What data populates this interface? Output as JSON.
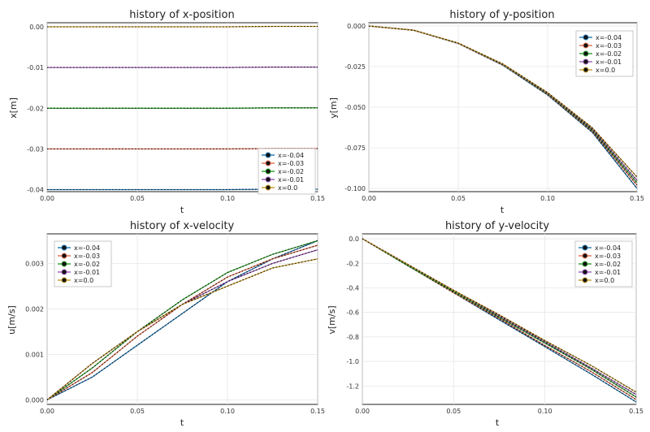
{
  "palette": [
    "#1f77b4",
    "#e06c4f",
    "#2ca02c",
    "#9b59b6",
    "#c79a2a"
  ],
  "chart_data": [
    {
      "type": "line",
      "title": "history of x-position",
      "xlabel": "t",
      "ylabel": "x[m]",
      "xlim": [
        0,
        0.15
      ],
      "ylim": [
        -0.0405,
        0.001
      ],
      "xticks": [
        "0.00",
        "0.05",
        "0.10",
        "0.15"
      ],
      "xtick_values": [
        0,
        0.05,
        0.1,
        0.15
      ],
      "yticks": [
        "-0.04",
        "-0.03",
        "-0.02",
        "-0.01",
        "0.00"
      ],
      "ytick_values": [
        -0.04,
        -0.03,
        -0.02,
        -0.01,
        0
      ],
      "grid": true,
      "legend_position": "bottom-right",
      "x": [
        0,
        0.025,
        0.05,
        0.075,
        0.1,
        0.125,
        0.15
      ],
      "series": [
        {
          "name": "x=-0.04",
          "values": [
            -0.04,
            -0.04,
            -0.04,
            -0.04,
            -0.04,
            -0.0399,
            -0.0399
          ]
        },
        {
          "name": "x=-0.03",
          "values": [
            -0.03,
            -0.03,
            -0.03,
            -0.03,
            -0.03,
            -0.0299,
            -0.0299
          ]
        },
        {
          "name": "x=-0.02",
          "values": [
            -0.02,
            -0.02,
            -0.02,
            -0.02,
            -0.02,
            -0.0199,
            -0.0199
          ]
        },
        {
          "name": "x=-0.01",
          "values": [
            -0.01,
            -0.01,
            -0.01,
            -0.01,
            -0.01,
            -0.0099,
            -0.0099
          ]
        },
        {
          "name": "x=0.0",
          "values": [
            0,
            0,
            0,
            0,
            0,
            0.0001,
            0.0001
          ]
        }
      ]
    },
    {
      "type": "line",
      "title": "history of y-position",
      "xlabel": "t",
      "ylabel": "y[m]",
      "xlim": [
        0,
        0.15
      ],
      "ylim": [
        -0.102,
        0.002
      ],
      "xticks": [
        "0.00",
        "0.05",
        "0.10",
        "0.15"
      ],
      "xtick_values": [
        0,
        0.05,
        0.1,
        0.15
      ],
      "yticks": [
        "-0.100",
        "-0.075",
        "-0.050",
        "-0.025",
        "0.000"
      ],
      "ytick_values": [
        -0.1,
        -0.075,
        -0.05,
        -0.025,
        0
      ],
      "grid": true,
      "legend_position": "top-right",
      "x": [
        0,
        0.025,
        0.05,
        0.075,
        0.1,
        0.125,
        0.15
      ],
      "series": [
        {
          "name": "x=-0.04",
          "values": [
            0,
            -0.0026,
            -0.0108,
            -0.0242,
            -0.0425,
            -0.0655,
            -0.1
          ]
        },
        {
          "name": "x=-0.03",
          "values": [
            0,
            -0.0026,
            -0.0107,
            -0.024,
            -0.0421,
            -0.0648,
            -0.098
          ]
        },
        {
          "name": "x=-0.02",
          "values": [
            0,
            -0.0026,
            -0.0106,
            -0.0238,
            -0.0417,
            -0.0641,
            -0.0965
          ]
        },
        {
          "name": "x=-0.01",
          "values": [
            0,
            -0.0026,
            -0.0106,
            -0.0236,
            -0.0413,
            -0.0634,
            -0.095
          ]
        },
        {
          "name": "x=0.0",
          "values": [
            0,
            -0.0026,
            -0.0105,
            -0.0234,
            -0.041,
            -0.0627,
            -0.093
          ]
        }
      ]
    },
    {
      "type": "line",
      "title": "history of x-velocity",
      "xlabel": "t",
      "ylabel": "u[m/s]",
      "xlim": [
        0,
        0.15
      ],
      "ylim": [
        -0.0001,
        0.00365
      ],
      "xticks": [
        "0.00",
        "0.05",
        "0.10",
        "0.15"
      ],
      "xtick_values": [
        0,
        0.05,
        0.1,
        0.15
      ],
      "yticks": [
        "0.000",
        "0.001",
        "0.002",
        "0.003"
      ],
      "ytick_values": [
        0,
        0.001,
        0.002,
        0.003
      ],
      "grid": true,
      "legend_position": "top-left",
      "x": [
        0,
        0.025,
        0.05,
        0.075,
        0.1,
        0.125,
        0.15
      ],
      "series": [
        {
          "name": "x=-0.04",
          "values": [
            0,
            0.0005,
            0.0012,
            0.0019,
            0.0026,
            0.0031,
            0.0035
          ]
        },
        {
          "name": "x=-0.03",
          "values": [
            0,
            0.0006,
            0.0014,
            0.0021,
            0.0027,
            0.0031,
            0.0034
          ]
        },
        {
          "name": "x=-0.02",
          "values": [
            0,
            0.0007,
            0.0015,
            0.0022,
            0.0028,
            0.0032,
            0.0035
          ]
        },
        {
          "name": "x=-0.01",
          "values": [
            0,
            0.0008,
            0.0015,
            0.0021,
            0.0026,
            0.003,
            0.0033
          ]
        },
        {
          "name": "x=0.0",
          "values": [
            0,
            0.0008,
            0.0015,
            0.0021,
            0.0025,
            0.0029,
            0.0031
          ]
        }
      ]
    },
    {
      "type": "line",
      "title": "history of y-velocity",
      "xlabel": "t",
      "ylabel": "v[m/s]",
      "xlim": [
        0,
        0.15
      ],
      "ylim": [
        -1.35,
        0.04
      ],
      "xticks": [
        "0.00",
        "0.05",
        "0.10",
        "0.15"
      ],
      "xtick_values": [
        0,
        0.05,
        0.1,
        0.15
      ],
      "yticks": [
        "-1.2",
        "-1.0",
        "-0.8",
        "-0.6",
        "-0.4",
        "-0.2",
        "0.0"
      ],
      "ytick_values": [
        -1.2,
        -1.0,
        -0.8,
        -0.6,
        -0.4,
        -0.2,
        0
      ],
      "grid": true,
      "legend_position": "top-right",
      "x": [
        0,
        0.025,
        0.05,
        0.075,
        0.1,
        0.125,
        0.15
      ],
      "series": [
        {
          "name": "x=-0.04",
          "values": [
            0,
            -0.22,
            -0.44,
            -0.66,
            -0.88,
            -1.1,
            -1.33
          ]
        },
        {
          "name": "x=-0.03",
          "values": [
            0,
            -0.22,
            -0.44,
            -0.65,
            -0.87,
            -1.08,
            -1.31
          ]
        },
        {
          "name": "x=-0.02",
          "values": [
            0,
            -0.22,
            -0.43,
            -0.64,
            -0.85,
            -1.06,
            -1.29
          ]
        },
        {
          "name": "x=-0.01",
          "values": [
            0,
            -0.21,
            -0.42,
            -0.63,
            -0.84,
            -1.05,
            -1.27
          ]
        },
        {
          "name": "x=0.0",
          "values": [
            0,
            -0.21,
            -0.42,
            -0.62,
            -0.83,
            -1.03,
            -1.25
          ]
        }
      ]
    }
  ]
}
